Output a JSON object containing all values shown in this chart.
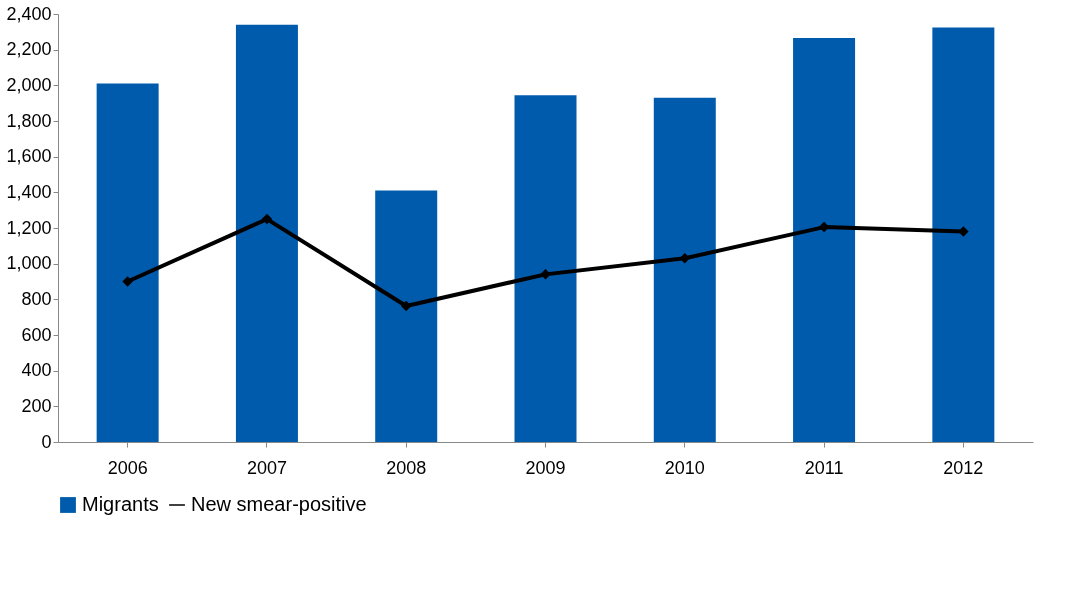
{
  "chart_data": {
    "type": "bar",
    "categories": [
      "2006",
      "2007",
      "2008",
      "2009",
      "2010",
      "2011",
      "2012"
    ],
    "series": [
      {
        "name": "Migrants",
        "color": "#005bac",
        "values": [
          2010,
          2340,
          1410,
          1945,
          1930,
          2265,
          2325
        ]
      },
      {
        "name": "New smear-positive",
        "type": "line",
        "color": "#000000",
        "marker": "diamond",
        "values": [
          900,
          1250,
          763,
          940,
          1030,
          1205,
          1180
        ]
      }
    ],
    "ylim": [
      0,
      2400
    ],
    "yticks": [
      0,
      200,
      400,
      600,
      800,
      {
        "value": 1000,
        "label": "1,000"
      },
      {
        "value": 1200,
        "label": "1,200"
      },
      {
        "value": 1400,
        "label": "1,400"
      },
      {
        "value": 1600,
        "label": "1,600"
      },
      {
        "value": 1800,
        "label": "1,800"
      },
      {
        "value": 2000,
        "label": "2,000"
      },
      {
        "value": 2200,
        "label": "2,200"
      },
      {
        "value": 2400,
        "label": "2,400"
      }
    ],
    "grid": false,
    "legend": "bottom"
  }
}
